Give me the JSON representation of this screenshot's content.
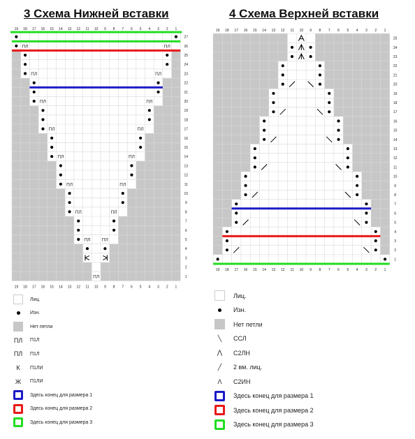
{
  "left": {
    "title": "3 Схема Нижней вставки",
    "cols": [
      "19",
      "18",
      "17",
      "16",
      "15",
      "14",
      "13",
      "12",
      "11",
      "10",
      "9",
      "8",
      "7",
      "6",
      "5",
      "4",
      "3",
      "2",
      "1"
    ],
    "rows": [
      {
        "r": 27,
        "in": [
          0,
          18
        ],
        "dot": [
          0,
          18
        ],
        "pp": []
      },
      {
        "r": 26,
        "in": [
          0,
          18
        ],
        "dot": [
          0
        ],
        "pp": [
          1,
          17
        ]
      },
      {
        "r": 25,
        "in": [
          1,
          17
        ],
        "dot": [
          1,
          17
        ],
        "pp": []
      },
      {
        "r": 24,
        "in": [
          1,
          17
        ],
        "dot": [
          1,
          17
        ],
        "pp": []
      },
      {
        "r": 23,
        "in": [
          1,
          17
        ],
        "dot": [
          1
        ],
        "pp": [
          2,
          16
        ]
      },
      {
        "r": 22,
        "in": [
          2,
          16
        ],
        "dot": [
          2,
          16
        ],
        "pp": []
      },
      {
        "r": 21,
        "in": [
          2,
          16
        ],
        "dot": [
          2,
          16
        ],
        "pp": []
      },
      {
        "r": 20,
        "in": [
          2,
          16
        ],
        "dot": [
          2
        ],
        "pp": [
          3,
          15
        ]
      },
      {
        "r": 19,
        "in": [
          3,
          15
        ],
        "dot": [
          3,
          15
        ],
        "pp": []
      },
      {
        "r": 18,
        "in": [
          3,
          15
        ],
        "dot": [
          3,
          15
        ],
        "pp": []
      },
      {
        "r": 17,
        "in": [
          3,
          15
        ],
        "dot": [
          3
        ],
        "pp": [
          4,
          14
        ]
      },
      {
        "r": 16,
        "in": [
          4,
          14
        ],
        "dot": [
          4,
          14
        ],
        "pp": []
      },
      {
        "r": 15,
        "in": [
          4,
          14
        ],
        "dot": [
          4,
          14
        ],
        "pp": []
      },
      {
        "r": 14,
        "in": [
          4,
          14
        ],
        "dot": [
          4
        ],
        "pp": [
          5,
          13
        ]
      },
      {
        "r": 13,
        "in": [
          5,
          13
        ],
        "dot": [
          5,
          13
        ],
        "pp": []
      },
      {
        "r": 12,
        "in": [
          5,
          13
        ],
        "dot": [
          5,
          13
        ],
        "pp": []
      },
      {
        "r": 11,
        "in": [
          5,
          13
        ],
        "dot": [
          5
        ],
        "pp": [
          6,
          12
        ]
      },
      {
        "r": 10,
        "in": [
          6,
          12
        ],
        "dot": [
          6,
          12
        ],
        "pp": []
      },
      {
        "r": 9,
        "in": [
          6,
          12
        ],
        "dot": [
          6,
          12
        ],
        "pp": []
      },
      {
        "r": 8,
        "in": [
          6,
          12
        ],
        "dot": [
          6
        ],
        "pp": [
          7,
          11
        ]
      },
      {
        "r": 7,
        "in": [
          7,
          11
        ],
        "dot": [
          7,
          11
        ],
        "pp": []
      },
      {
        "r": 6,
        "in": [
          7,
          11
        ],
        "dot": [
          7,
          11
        ],
        "pp": []
      },
      {
        "r": 5,
        "in": [
          7,
          11
        ],
        "dot": [
          7
        ],
        "pp": [
          8,
          10
        ]
      },
      {
        "r": 4,
        "in": [
          8,
          10
        ],
        "dot": [
          8,
          10
        ],
        "pp": []
      },
      {
        "r": 3,
        "in": [
          8,
          10
        ],
        "dot": [],
        "pp": [],
        "kl": [
          8
        ],
        "kr": [
          10
        ]
      },
      {
        "r": 2,
        "in": [
          9,
          9
        ],
        "dot": [],
        "pp": []
      },
      {
        "r": 1,
        "in": [
          9,
          9
        ],
        "dot": [],
        "pp": [
          9
        ]
      }
    ],
    "lines": [
      {
        "after_row": 27,
        "color": "#22dd22"
      },
      {
        "after_row": 26,
        "color": "#e81818"
      },
      {
        "after_row": 22,
        "color": "#1a1ac8"
      }
    ],
    "pp_text": "ПЛ"
  },
  "right": {
    "title": "4 Схема Верхней вставки",
    "cols": [
      "19",
      "18",
      "17",
      "16",
      "15",
      "14",
      "13",
      "12",
      "11",
      "10",
      "9",
      "8",
      "7",
      "6",
      "5",
      "4",
      "3",
      "2",
      "1"
    ],
    "rows": [
      {
        "r": 25,
        "in": [
          8,
          10
        ],
        "dot": [],
        "sym": {
          "9": "A"
        }
      },
      {
        "r": 24,
        "in": [
          8,
          10
        ],
        "dot": [
          8,
          10
        ],
        "sym": {
          "9": "M"
        }
      },
      {
        "r": 23,
        "in": [
          8,
          10
        ],
        "dot": [
          8,
          10
        ],
        "sym": {
          "9": "M"
        }
      },
      {
        "r": 22,
        "in": [
          7,
          11
        ],
        "dot": [
          7,
          11
        ],
        "sym": {}
      },
      {
        "r": 21,
        "in": [
          7,
          11
        ],
        "dot": [
          7,
          11
        ],
        "sym": {}
      },
      {
        "r": 20,
        "in": [
          7,
          11
        ],
        "dot": [
          7,
          11
        ],
        "sym": {
          "8": "/",
          "10": "\\"
        }
      },
      {
        "r": 19,
        "in": [
          6,
          12
        ],
        "dot": [
          6,
          12
        ],
        "sym": {}
      },
      {
        "r": 18,
        "in": [
          6,
          12
        ],
        "dot": [
          6,
          12
        ],
        "sym": {}
      },
      {
        "r": 17,
        "in": [
          6,
          12
        ],
        "dot": [
          6,
          12
        ],
        "sym": {
          "7": "/",
          "11": "\\"
        }
      },
      {
        "r": 16,
        "in": [
          5,
          13
        ],
        "dot": [
          5,
          13
        ],
        "sym": {}
      },
      {
        "r": 15,
        "in": [
          5,
          13
        ],
        "dot": [
          5,
          13
        ],
        "sym": {}
      },
      {
        "r": 14,
        "in": [
          5,
          13
        ],
        "dot": [
          5,
          13
        ],
        "sym": {
          "6": "/",
          "12": "\\"
        }
      },
      {
        "r": 13,
        "in": [
          4,
          14
        ],
        "dot": [
          4,
          14
        ],
        "sym": {}
      },
      {
        "r": 12,
        "in": [
          4,
          14
        ],
        "dot": [
          4,
          14
        ],
        "sym": {}
      },
      {
        "r": 11,
        "in": [
          4,
          14
        ],
        "dot": [
          4,
          14
        ],
        "sym": {
          "5": "/",
          "13": "\\"
        }
      },
      {
        "r": 10,
        "in": [
          3,
          15
        ],
        "dot": [
          3,
          15
        ],
        "sym": {}
      },
      {
        "r": 9,
        "in": [
          3,
          15
        ],
        "dot": [
          3,
          15
        ],
        "sym": {}
      },
      {
        "r": 8,
        "in": [
          3,
          15
        ],
        "dot": [
          3,
          15
        ],
        "sym": {
          "4": "/",
          "14": "\\"
        }
      },
      {
        "r": 7,
        "in": [
          2,
          16
        ],
        "dot": [
          2,
          16
        ],
        "sym": {}
      },
      {
        "r": 6,
        "in": [
          2,
          16
        ],
        "dot": [
          2,
          16
        ],
        "sym": {}
      },
      {
        "r": 5,
        "in": [
          2,
          16
        ],
        "dot": [
          2,
          16
        ],
        "sym": {
          "3": "/",
          "15": "\\"
        }
      },
      {
        "r": 4,
        "in": [
          1,
          17
        ],
        "dot": [
          1,
          17
        ],
        "sym": {}
      },
      {
        "r": 3,
        "in": [
          1,
          17
        ],
        "dot": [
          1,
          17
        ],
        "sym": {}
      },
      {
        "r": 2,
        "in": [
          1,
          17
        ],
        "dot": [
          1,
          17
        ],
        "sym": {
          "2": "/",
          "16": "\\"
        }
      },
      {
        "r": 1,
        "in": [
          0,
          18
        ],
        "dot": [
          0,
          18
        ],
        "sym": {}
      }
    ],
    "lines": [
      {
        "after_row": 7,
        "color": "#1a1ac8"
      },
      {
        "after_row": 4,
        "color": "#e81818"
      },
      {
        "after_row": 1,
        "color": "#22dd22"
      }
    ]
  },
  "legend_left": [
    {
      "sym": "white",
      "label": "Лиц."
    },
    {
      "sym": "dot",
      "label": "Изн."
    },
    {
      "sym": "gray",
      "label": "Нет петли"
    },
    {
      "sym": "text",
      "text": "ПЛ",
      "label": "П1Л"
    },
    {
      "sym": "text",
      "text": "ПЛ",
      "label": "П1Л"
    },
    {
      "sym": "text",
      "text": "К",
      "label": "П1ЛИ"
    },
    {
      "sym": "text",
      "text": "Ж",
      "label": "П1ЛИ"
    },
    {
      "sym": "box",
      "color": "#1a1ac8",
      "label": "Здесь конец для размера 1"
    },
    {
      "sym": "box",
      "color": "#e81818",
      "label": "Здесь конец для размера 2"
    },
    {
      "sym": "box",
      "color": "#22dd22",
      "label": "Здесь конец для размера 3"
    }
  ],
  "legend_right": [
    {
      "sym": "white",
      "label": "Лиц."
    },
    {
      "sym": "dot",
      "label": "Изн."
    },
    {
      "sym": "gray",
      "label": "Нет петли"
    },
    {
      "sym": "text",
      "text": "╲",
      "label": "ССЛ"
    },
    {
      "sym": "text",
      "text": "⋀",
      "label": "С2ЛН"
    },
    {
      "sym": "text",
      "text": "╱",
      "label": "2 вм. лиц."
    },
    {
      "sym": "text",
      "text": "Ʌ",
      "label": "С2ИН"
    },
    {
      "sym": "box",
      "color": "#1a1ac8",
      "label": "Здесь конец для размера 1"
    },
    {
      "sym": "box",
      "color": "#e81818",
      "label": "Здесь конец для размера 2"
    },
    {
      "sym": "box",
      "color": "#22dd22",
      "label": "Здесь конец для размера 3"
    }
  ]
}
